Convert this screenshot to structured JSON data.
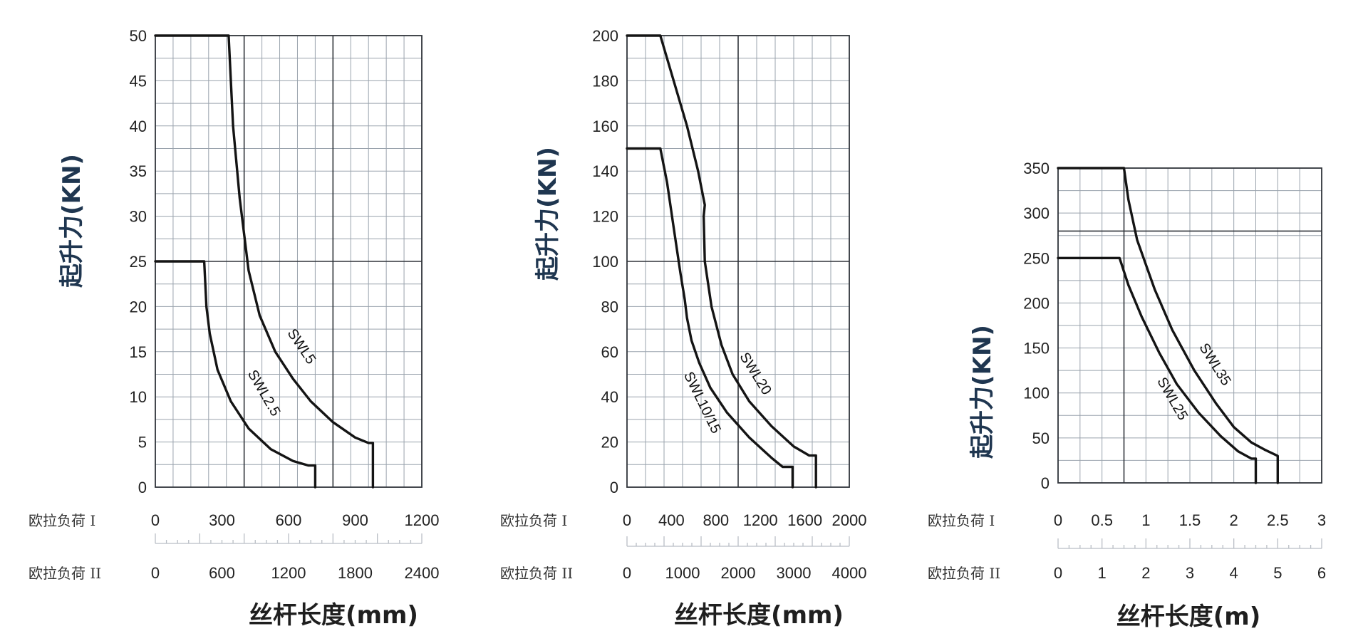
{
  "chart_data": [
    {
      "type": "line",
      "ylabel": "起升力(KN)",
      "xlabel": "丝杆长度(mm)",
      "ylim": [
        0,
        50
      ],
      "yticks": [
        "0",
        "5",
        "10",
        "15",
        "20",
        "25",
        "30",
        "35",
        "40",
        "45",
        "50"
      ],
      "xlim": [
        0,
        1200
      ],
      "x_axis_I": {
        "label": "欧拉负荷 I",
        "ticks": [
          "0",
          "300",
          "600",
          "900",
          "1200"
        ]
      },
      "x_axis_II": {
        "label": "欧拉负荷 II",
        "ticks": [
          "0",
          "600",
          "1200",
          "1800",
          "2400"
        ]
      },
      "series": [
        {
          "name": "SWL5",
          "points": [
            [
              0,
              50
            ],
            [
              330,
              50
            ],
            [
              350,
              40
            ],
            [
              380,
              32
            ],
            [
              420,
              24
            ],
            [
              470,
              19
            ],
            [
              540,
              15
            ],
            [
              620,
              12
            ],
            [
              700,
              9.5
            ],
            [
              800,
              7.2
            ],
            [
              900,
              5.5
            ],
            [
              960,
              4.9
            ],
            [
              980,
              4.9
            ],
            [
              980,
              0
            ]
          ]
        },
        {
          "name": "SWL2.5",
          "points": [
            [
              0,
              25
            ],
            [
              220,
              25
            ],
            [
              230,
              20
            ],
            [
              245,
              17
            ],
            [
              280,
              13
            ],
            [
              340,
              9.5
            ],
            [
              420,
              6.5
            ],
            [
              520,
              4.2
            ],
            [
              620,
              2.9
            ],
            [
              690,
              2.4
            ],
            [
              720,
              2.4
            ],
            [
              720,
              0
            ]
          ]
        }
      ],
      "grid": true
    },
    {
      "type": "line",
      "ylabel": "起升力(KN)",
      "xlabel": "丝杆长度(mm)",
      "ylim": [
        0,
        200
      ],
      "yticks": [
        "0",
        "20",
        "40",
        "60",
        "80",
        "100",
        "120",
        "140",
        "160",
        "180",
        "200"
      ],
      "xlim": [
        0,
        2000
      ],
      "x_axis_I": {
        "label": "欧拉负荷 I",
        "ticks": [
          "0",
          "400",
          "800",
          "1200",
          "1600",
          "2000"
        ]
      },
      "x_axis_II": {
        "label": "欧拉负荷 II",
        "ticks": [
          "0",
          "1000",
          "2000",
          "3000",
          "4000"
        ]
      },
      "series": [
        {
          "name": "SWL20",
          "points": [
            [
              0,
              200
            ],
            [
              300,
              200
            ],
            [
              420,
              180
            ],
            [
              540,
              160
            ],
            [
              640,
              140
            ],
            [
              700,
              125
            ],
            [
              690,
              120
            ],
            [
              700,
              100
            ],
            [
              760,
              80
            ],
            [
              850,
              63
            ],
            [
              950,
              50
            ],
            [
              1100,
              38
            ],
            [
              1300,
              27
            ],
            [
              1500,
              18
            ],
            [
              1640,
              14
            ],
            [
              1700,
              14
            ],
            [
              1700,
              0
            ]
          ]
        },
        {
          "name": "SWL10/15",
          "points": [
            [
              0,
              150
            ],
            [
              300,
              150
            ],
            [
              360,
              135
            ],
            [
              420,
              115
            ],
            [
              480,
              95
            ],
            [
              520,
              83
            ],
            [
              540,
              75
            ],
            [
              580,
              65
            ],
            [
              650,
              55
            ],
            [
              750,
              44
            ],
            [
              900,
              33
            ],
            [
              1100,
              22
            ],
            [
              1300,
              13
            ],
            [
              1400,
              9
            ],
            [
              1490,
              9
            ],
            [
              1490,
              0
            ]
          ]
        }
      ],
      "grid": true
    },
    {
      "type": "line",
      "ylabel": "起升力(KN)",
      "xlabel": "丝杆长度(m)",
      "ylim": [
        0,
        350
      ],
      "yticks": [
        "0",
        "50",
        "100",
        "150",
        "200",
        "250",
        "300",
        "350"
      ],
      "xlim": [
        0,
        3
      ],
      "x_axis_I": {
        "label": "欧拉负荷 I",
        "ticks": [
          "0",
          "0.5",
          "1",
          "1.5",
          "2",
          "2.5",
          "3"
        ]
      },
      "x_axis_II": {
        "label": "欧拉负荷 II",
        "ticks": [
          "0",
          "1",
          "2",
          "3",
          "4",
          "5",
          "6"
        ]
      },
      "series": [
        {
          "name": "SWL35",
          "points": [
            [
              0,
              350
            ],
            [
              0.75,
              350
            ],
            [
              0.8,
              315
            ],
            [
              0.9,
              270
            ],
            [
              1.1,
              215
            ],
            [
              1.3,
              170
            ],
            [
              1.55,
              125
            ],
            [
              1.8,
              88
            ],
            [
              2.0,
              62
            ],
            [
              2.2,
              45
            ],
            [
              2.35,
              37
            ],
            [
              2.5,
              30
            ],
            [
              2.5,
              0
            ]
          ]
        },
        {
          "name": "SWL25",
          "points": [
            [
              0,
              250
            ],
            [
              0.7,
              250
            ],
            [
              0.8,
              220
            ],
            [
              0.95,
              185
            ],
            [
              1.15,
              145
            ],
            [
              1.35,
              110
            ],
            [
              1.6,
              78
            ],
            [
              1.85,
              52
            ],
            [
              2.05,
              35
            ],
            [
              2.2,
              27
            ],
            [
              2.25,
              27
            ],
            [
              2.25,
              0
            ]
          ]
        }
      ],
      "grid": true
    }
  ]
}
